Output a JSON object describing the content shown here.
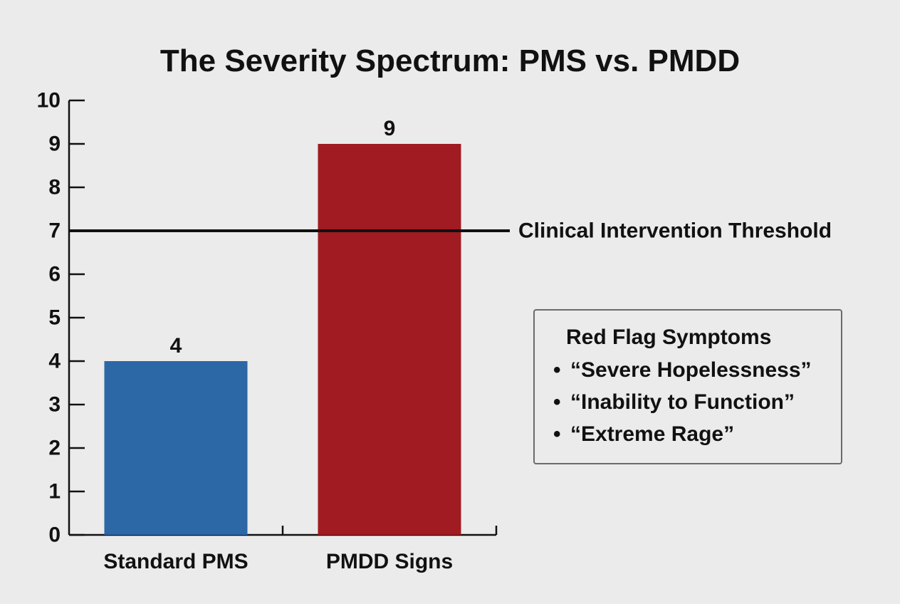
{
  "chart_data": {
    "type": "bar",
    "title": "The Severity Spectrum: PMS vs. PMDD",
    "categories": [
      "Standard PMS",
      "PMDD Signs"
    ],
    "values": [
      4,
      9
    ],
    "data_labels": [
      "4",
      "9"
    ],
    "colors": [
      "#2c67a6",
      "#a11b22"
    ],
    "xlabel": "",
    "ylabel": "",
    "ylim": [
      0,
      10
    ],
    "yticks": [
      0,
      1,
      2,
      3,
      4,
      5,
      6,
      7,
      8,
      9,
      10
    ],
    "grid": false,
    "reference_line": {
      "value": 7,
      "label": "Clinical Intervention Threshold",
      "color": "#111111"
    },
    "annotation_box": {
      "title": "Red Flag Symptoms",
      "items": [
        "“Severe Hopelessness”",
        "“Inability to Function”",
        "“Extreme Rage”"
      ],
      "bullet": "•",
      "placement": "right"
    }
  }
}
